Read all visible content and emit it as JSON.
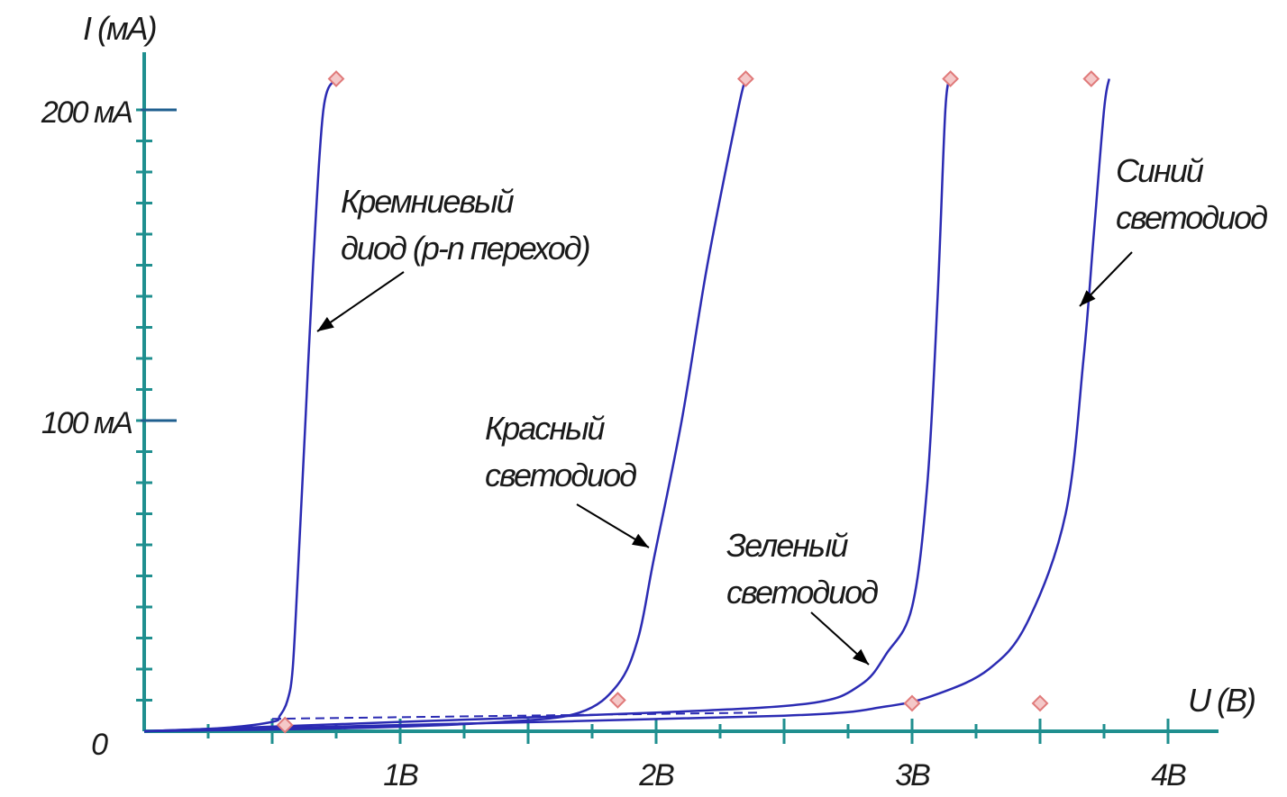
{
  "chart_data": {
    "type": "line",
    "xlabel": "U (В)",
    "ylabel": "I (мА)",
    "xlim": [
      0,
      4.2
    ],
    "ylim": [
      0,
      220
    ],
    "grid": false,
    "x_tick_labels": [
      {
        "value": 1,
        "label": "1В"
      },
      {
        "value": 2,
        "label": "2В"
      },
      {
        "value": 3,
        "label": "3В"
      },
      {
        "value": 4,
        "label": "4В"
      }
    ],
    "y_tick_labels": [
      {
        "value": 0,
        "label": "0"
      },
      {
        "value": 100,
        "label": "100 мА"
      },
      {
        "value": 200,
        "label": "200 мА"
      }
    ],
    "series": [
      {
        "name": "Кремниевый диод (p-n переход)",
        "label_lines": [
          "Кремниевый",
          "диод (p-n переход)"
        ],
        "color": "#2b2bb3",
        "points": [
          [
            0,
            0
          ],
          [
            0.3,
            1
          ],
          [
            0.5,
            3
          ],
          [
            0.53,
            5
          ],
          [
            0.56,
            10
          ],
          [
            0.58,
            20
          ],
          [
            0.6,
            50
          ],
          [
            0.63,
            100
          ],
          [
            0.66,
            150
          ],
          [
            0.7,
            200
          ],
          [
            0.75,
            210
          ]
        ]
      },
      {
        "name": "Красный светодиод",
        "label_lines": [
          "Красный",
          "светодиод"
        ],
        "color": "#2b2bb3",
        "points": [
          [
            0,
            0
          ],
          [
            0.8,
            1
          ],
          [
            1.4,
            3
          ],
          [
            1.7,
            6
          ],
          [
            1.85,
            15
          ],
          [
            1.93,
            30
          ],
          [
            1.99,
            55
          ],
          [
            2.1,
            100
          ],
          [
            2.2,
            150
          ],
          [
            2.32,
            200
          ],
          [
            2.35,
            210
          ]
        ]
      },
      {
        "name": "Зеленый светодиод",
        "label_lines": [
          "Зеленый",
          "светодиод"
        ],
        "color": "#2b2bb3",
        "points": [
          [
            0,
            0
          ],
          [
            1.0,
            3
          ],
          [
            2.0,
            6
          ],
          [
            2.6,
            9
          ],
          [
            2.8,
            15
          ],
          [
            2.9,
            25
          ],
          [
            3.0,
            40
          ],
          [
            3.06,
            80
          ],
          [
            3.1,
            140
          ],
          [
            3.13,
            200
          ],
          [
            3.15,
            210
          ]
        ]
      },
      {
        "name": "Синий светодиод",
        "label_lines": [
          "Синий",
          "светодиод"
        ],
        "color": "#2b2bb3",
        "points": [
          [
            0,
            0
          ],
          [
            1.0,
            2
          ],
          [
            2.5,
            5
          ],
          [
            2.9,
            8
          ],
          [
            3.1,
            12
          ],
          [
            3.3,
            20
          ],
          [
            3.45,
            35
          ],
          [
            3.6,
            70
          ],
          [
            3.67,
            120
          ],
          [
            3.71,
            160
          ],
          [
            3.75,
            200
          ],
          [
            3.77,
            210
          ]
        ]
      }
    ],
    "markers": [
      {
        "x": 0.75,
        "y": 210
      },
      {
        "x": 2.35,
        "y": 210
      },
      {
        "x": 3.15,
        "y": 210
      },
      {
        "x": 3.7,
        "y": 210
      },
      {
        "x": 0.55,
        "y": 2
      },
      {
        "x": 1.85,
        "y": 10
      },
      {
        "x": 3.0,
        "y": 9
      },
      {
        "x": 3.5,
        "y": 9
      }
    ],
    "colors": {
      "axis": "#1f8f8f",
      "curve": "#2b2bb3",
      "marker": "#e07a7a",
      "arrow": "#000000"
    }
  }
}
